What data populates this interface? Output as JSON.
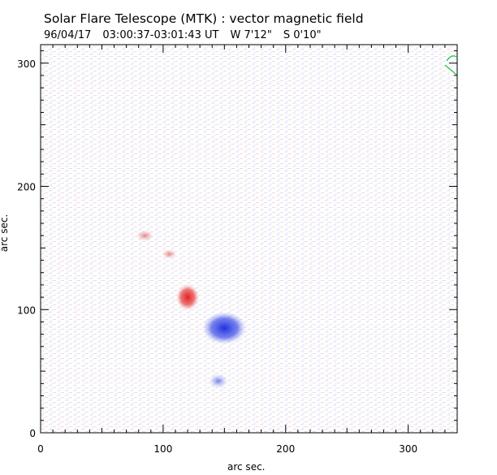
{
  "title": "Solar Flare Telescope (MTK) : vector magnetic field",
  "subtitle": {
    "date": "96/04/17",
    "time": "03:00:37-03:01:43 UT",
    "lon": "W 7'12\"",
    "lat": "S 0'10\""
  },
  "chart_data": {
    "type": "heatmap",
    "xlabel": "arc sec.",
    "ylabel": "arc sec.",
    "xlim": [
      0,
      340
    ],
    "ylim": [
      0,
      315
    ],
    "xticks": [
      "0",
      "100",
      "200",
      "300"
    ],
    "yticks": [
      "0",
      "100",
      "200",
      "300"
    ],
    "features": [
      {
        "polarity": "positive",
        "color": "#e03030",
        "x": 120,
        "y": 110
      },
      {
        "polarity": "positive",
        "color": "#e07070",
        "x": 85,
        "y": 160
      },
      {
        "polarity": "positive",
        "color": "#e08080",
        "x": 105,
        "y": 145
      },
      {
        "polarity": "negative",
        "color": "#3040e0",
        "x": 150,
        "y": 85
      },
      {
        "polarity": "negative",
        "color": "#6070e0",
        "x": 145,
        "y": 42
      }
    ]
  }
}
